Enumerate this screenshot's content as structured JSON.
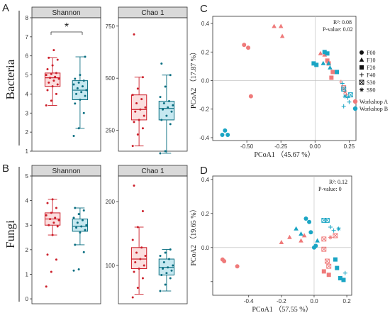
{
  "colors": {
    "workshop_a": "#ef7a7a",
    "workshop_a_dark": "#cc1f2a",
    "workshop_b": "#1aa5c4",
    "workshop_b_dark": "#0b6f82",
    "strip_bg": "#d9d9d9"
  },
  "rows": {
    "bacteria": "Bacteria",
    "fungi": "Fungi"
  },
  "panel_letters": {
    "A": "A",
    "B": "B",
    "C": "C",
    "D": "D"
  },
  "significance": "*",
  "chart_data": [
    {
      "id": "A-shannon",
      "type": "box",
      "strip": "Shannon",
      "ylim": [
        1,
        8
      ],
      "yticks": [
        1,
        2,
        3,
        4,
        5,
        6,
        7,
        8
      ],
      "boxes": [
        {
          "group": "Workshop A",
          "q1": 4.4,
          "median": 4.85,
          "q3": 5.1,
          "low": 3.4,
          "high": 5.9,
          "points": [
            3.4,
            3.65,
            4.0,
            4.2,
            4.4,
            4.5,
            4.6,
            4.7,
            4.8,
            4.85,
            4.9,
            5.0,
            5.05,
            5.1,
            5.3,
            5.5,
            5.8,
            5.9,
            6.3
          ]
        },
        {
          "group": "Workshop B",
          "q1": 3.7,
          "median": 4.2,
          "q3": 4.7,
          "low": 2.2,
          "high": 5.95,
          "points": [
            1.8,
            2.2,
            3.0,
            3.5,
            3.7,
            3.9,
            4.0,
            4.1,
            4.2,
            4.3,
            4.4,
            4.5,
            4.6,
            4.7,
            4.8,
            5.0,
            5.95
          ]
        }
      ]
    },
    {
      "id": "A-chao1",
      "type": "box",
      "strip": "Chao 1",
      "ylim": [
        150,
        790
      ],
      "yticks": [
        250,
        500,
        750
      ],
      "boxes": [
        {
          "group": "Workshop A",
          "q1": 300,
          "median": 350,
          "q3": 420,
          "low": 175,
          "high": 505,
          "points": [
            175,
            230,
            260,
            290,
            300,
            320,
            340,
            350,
            360,
            380,
            400,
            420,
            450,
            505,
            710
          ]
        },
        {
          "group": "Workshop B",
          "q1": 300,
          "median": 355,
          "q3": 390,
          "low": 140,
          "high": 515,
          "points": [
            140,
            150,
            280,
            300,
            320,
            340,
            350,
            360,
            370,
            380,
            390,
            410,
            460,
            515,
            570
          ]
        }
      ]
    },
    {
      "id": "B-shannon",
      "type": "box",
      "strip": "Shannon",
      "ylim": [
        -0.2,
        5
      ],
      "yticks": [
        0,
        1,
        2,
        3,
        4,
        5
      ],
      "boxes": [
        {
          "group": "Workshop A",
          "q1": 3.0,
          "median": 3.25,
          "q3": 3.5,
          "low": 2.6,
          "high": 4.05,
          "points": [
            0.5,
            1.1,
            1.6,
            1.8,
            2.6,
            2.95,
            3.0,
            3.1,
            3.2,
            3.25,
            3.3,
            3.4,
            3.5,
            3.7,
            3.9,
            4.05
          ]
        },
        {
          "group": "Workshop B",
          "q1": 2.75,
          "median": 2.95,
          "q3": 3.25,
          "low": 2.2,
          "high": 3.7,
          "points": [
            1.15,
            1.2,
            1.9,
            2.2,
            2.7,
            2.8,
            2.9,
            2.95,
            3.0,
            3.1,
            3.2,
            3.3,
            3.45,
            3.6,
            3.7
          ]
        }
      ]
    },
    {
      "id": "B-chao1",
      "type": "box",
      "strip": "Chao 1",
      "ylim": [
        40,
        240
      ],
      "yticks": [
        100,
        200
      ],
      "boxes": [
        {
          "group": "Workshop A",
          "q1": 95,
          "median": 110,
          "q3": 128,
          "low": 55,
          "high": 160,
          "points": [
            50,
            65,
            80,
            90,
            95,
            100,
            105,
            110,
            115,
            120,
            128,
            140,
            160,
            185,
            225
          ]
        },
        {
          "group": "Workshop B",
          "q1": 85,
          "median": 97,
          "q3": 110,
          "low": 60,
          "high": 125,
          "points": [
            60,
            70,
            80,
            85,
            88,
            92,
            95,
            97,
            100,
            105,
            110,
            115,
            120,
            125
          ]
        }
      ]
    },
    {
      "id": "C-pcoa",
      "type": "scatter",
      "xlabel": "PCoA1 （45.67 %）",
      "ylabel": "PCoA2 （17.87 %）",
      "xlim": [
        -0.75,
        0.3
      ],
      "ylim": [
        -0.42,
        0.45
      ],
      "xticks": [
        -0.5,
        -0.25,
        0.0,
        0.25
      ],
      "xticklabels": [
        "-0.50",
        "-0.25",
        "0.00",
        "0.25"
      ],
      "yticks": [
        -0.4,
        -0.2,
        0.0,
        0.2,
        0.4
      ],
      "yticklabels": [
        "-0.4",
        "-0.2",
        "0.0",
        "0.2",
        "0.4"
      ],
      "stat_r2": "R²: 0.08",
      "stat_p": "P-value:  0.02",
      "shape_legend": [
        {
          "shape": "circle",
          "label": "F00"
        },
        {
          "shape": "triangle",
          "label": "F10"
        },
        {
          "shape": "square",
          "label": "F20"
        },
        {
          "shape": "plus",
          "label": "F40"
        },
        {
          "shape": "boxx",
          "label": "S30"
        },
        {
          "shape": "star",
          "label": "S90"
        }
      ],
      "color_legend": [
        {
          "group": "A",
          "label": "Workshop A"
        },
        {
          "group": "B",
          "label": "Workshop B"
        }
      ],
      "points": [
        {
          "x": -0.52,
          "y": 0.25,
          "g": "A",
          "s": "circle"
        },
        {
          "x": -0.49,
          "y": 0.23,
          "g": "A",
          "s": "circle"
        },
        {
          "x": -0.47,
          "y": -0.11,
          "g": "A",
          "s": "circle"
        },
        {
          "x": -0.3,
          "y": 0.38,
          "g": "A",
          "s": "triangle"
        },
        {
          "x": -0.25,
          "y": 0.38,
          "g": "A",
          "s": "triangle"
        },
        {
          "x": -0.24,
          "y": 0.31,
          "g": "A",
          "s": "triangle"
        },
        {
          "x": -0.68,
          "y": -0.38,
          "g": "B",
          "s": "circle"
        },
        {
          "x": -0.66,
          "y": -0.35,
          "g": "B",
          "s": "circle"
        },
        {
          "x": -0.64,
          "y": -0.38,
          "g": "B",
          "s": "circle"
        },
        {
          "x": 0.04,
          "y": 0.19,
          "g": "A",
          "s": "triangle"
        },
        {
          "x": 0.07,
          "y": 0.18,
          "g": "A",
          "s": "triangle"
        },
        {
          "x": 0.09,
          "y": 0.14,
          "g": "A",
          "s": "square"
        },
        {
          "x": 0.1,
          "y": 0.12,
          "g": "A",
          "s": "square"
        },
        {
          "x": 0.13,
          "y": 0.06,
          "g": "A",
          "s": "square"
        },
        {
          "x": 0.12,
          "y": 0.02,
          "g": "A",
          "s": "square"
        },
        {
          "x": 0.07,
          "y": 0.2,
          "g": "B",
          "s": "square"
        },
        {
          "x": 0.09,
          "y": 0.19,
          "g": "B",
          "s": "square"
        },
        {
          "x": -0.01,
          "y": 0.12,
          "g": "B",
          "s": "square"
        },
        {
          "x": 0.01,
          "y": 0.11,
          "g": "B",
          "s": "square"
        },
        {
          "x": 0.06,
          "y": 0.12,
          "g": "B",
          "s": "triangle"
        },
        {
          "x": 0.1,
          "y": 0.12,
          "g": "B",
          "s": "triangle"
        },
        {
          "x": 0.11,
          "y": 0.09,
          "g": "B",
          "s": "triangle"
        },
        {
          "x": 0.16,
          "y": 0.06,
          "g": "B",
          "s": "square"
        },
        {
          "x": 0.19,
          "y": -0.01,
          "g": "A",
          "s": "plus"
        },
        {
          "x": 0.21,
          "y": -0.05,
          "g": "A",
          "s": "boxx"
        },
        {
          "x": 0.22,
          "y": -0.08,
          "g": "A",
          "s": "star"
        },
        {
          "x": 0.23,
          "y": -0.1,
          "g": "A",
          "s": "plus"
        },
        {
          "x": 0.2,
          "y": -0.02,
          "g": "B",
          "s": "plus"
        },
        {
          "x": 0.21,
          "y": -0.06,
          "g": "B",
          "s": "boxx"
        },
        {
          "x": 0.22,
          "y": -0.11,
          "g": "B",
          "s": "star"
        },
        {
          "x": 0.24,
          "y": -0.12,
          "g": "B",
          "s": "plus"
        },
        {
          "x": 0.25,
          "y": -0.15,
          "g": "B",
          "s": "plus"
        },
        {
          "x": 0.21,
          "y": -0.18,
          "g": "B",
          "s": "plus"
        },
        {
          "x": 0.26,
          "y": -0.1,
          "g": "B",
          "s": "boxx"
        }
      ]
    },
    {
      "id": "D-pcoa",
      "type": "scatter",
      "xlabel": "PCoA1 （57.55 %）",
      "ylabel": "PCoA2 （19.65 %）",
      "xlim": [
        -0.62,
        0.23
      ],
      "ylim": [
        -0.28,
        0.42
      ],
      "xticks": [
        -0.4,
        -0.2,
        0.0,
        0.2
      ],
      "xticklabels": [
        "-0.4",
        "-0.2",
        "0.0",
        "0.2"
      ],
      "yticks": [
        -0.2,
        0.0,
        0.2,
        0.4
      ],
      "yticklabels": [
        "",
        "0.0",
        "0.2",
        "0.4"
      ],
      "stat_r2": "R²: 0.12",
      "stat_p": "P-value:  0",
      "points": [
        {
          "x": -0.56,
          "y": -0.07,
          "g": "A",
          "s": "circle"
        },
        {
          "x": -0.55,
          "y": -0.08,
          "g": "A",
          "s": "circle"
        },
        {
          "x": -0.47,
          "y": -0.11,
          "g": "A",
          "s": "circle"
        },
        {
          "x": -0.2,
          "y": 0.03,
          "g": "A",
          "s": "triangle"
        },
        {
          "x": -0.15,
          "y": 0.06,
          "g": "A",
          "s": "triangle"
        },
        {
          "x": -0.08,
          "y": 0.04,
          "g": "A",
          "s": "triangle"
        },
        {
          "x": -0.06,
          "y": 0.07,
          "g": "A",
          "s": "triangle"
        },
        {
          "x": -0.05,
          "y": 0.17,
          "g": "B",
          "s": "circle"
        },
        {
          "x": -0.03,
          "y": 0.15,
          "g": "B",
          "s": "circle"
        },
        {
          "x": -0.11,
          "y": 0.11,
          "g": "B",
          "s": "triangle"
        },
        {
          "x": -0.08,
          "y": 0.08,
          "g": "B",
          "s": "triangle"
        },
        {
          "x": -0.02,
          "y": 0.09,
          "g": "B",
          "s": "circle"
        },
        {
          "x": 0.0,
          "y": 0.0,
          "g": "B",
          "s": "circle"
        },
        {
          "x": 0.01,
          "y": 0.01,
          "g": "B",
          "s": "circle"
        },
        {
          "x": 0.02,
          "y": 0.04,
          "g": "B",
          "s": "triangle"
        },
        {
          "x": 0.06,
          "y": 0.16,
          "g": "B",
          "s": "boxx"
        },
        {
          "x": 0.08,
          "y": 0.16,
          "g": "B",
          "s": "boxx"
        },
        {
          "x": 0.1,
          "y": 0.12,
          "g": "B",
          "s": "plus"
        },
        {
          "x": 0.12,
          "y": 0.1,
          "g": "B",
          "s": "plus"
        },
        {
          "x": 0.15,
          "y": 0.11,
          "g": "B",
          "s": "star"
        },
        {
          "x": 0.13,
          "y": 0.07,
          "g": "A",
          "s": "boxx"
        },
        {
          "x": 0.1,
          "y": 0.06,
          "g": "A",
          "s": "star"
        },
        {
          "x": 0.06,
          "y": 0.05,
          "g": "A",
          "s": "boxx"
        },
        {
          "x": 0.06,
          "y": -0.01,
          "g": "A",
          "s": "boxx"
        },
        {
          "x": 0.08,
          "y": -0.08,
          "g": "A",
          "s": "boxx"
        },
        {
          "x": 0.09,
          "y": -0.11,
          "g": "A",
          "s": "boxx"
        },
        {
          "x": 0.06,
          "y": -0.14,
          "g": "A",
          "s": "square"
        },
        {
          "x": 0.09,
          "y": -0.16,
          "g": "A",
          "s": "square"
        },
        {
          "x": 0.13,
          "y": -0.07,
          "g": "B",
          "s": "square"
        },
        {
          "x": 0.14,
          "y": -0.12,
          "g": "B",
          "s": "square"
        },
        {
          "x": 0.16,
          "y": -0.18,
          "g": "B",
          "s": "square"
        },
        {
          "x": 0.18,
          "y": -0.19,
          "g": "B",
          "s": "square"
        },
        {
          "x": 0.19,
          "y": -0.15,
          "g": "B",
          "s": "plus"
        }
      ]
    }
  ]
}
